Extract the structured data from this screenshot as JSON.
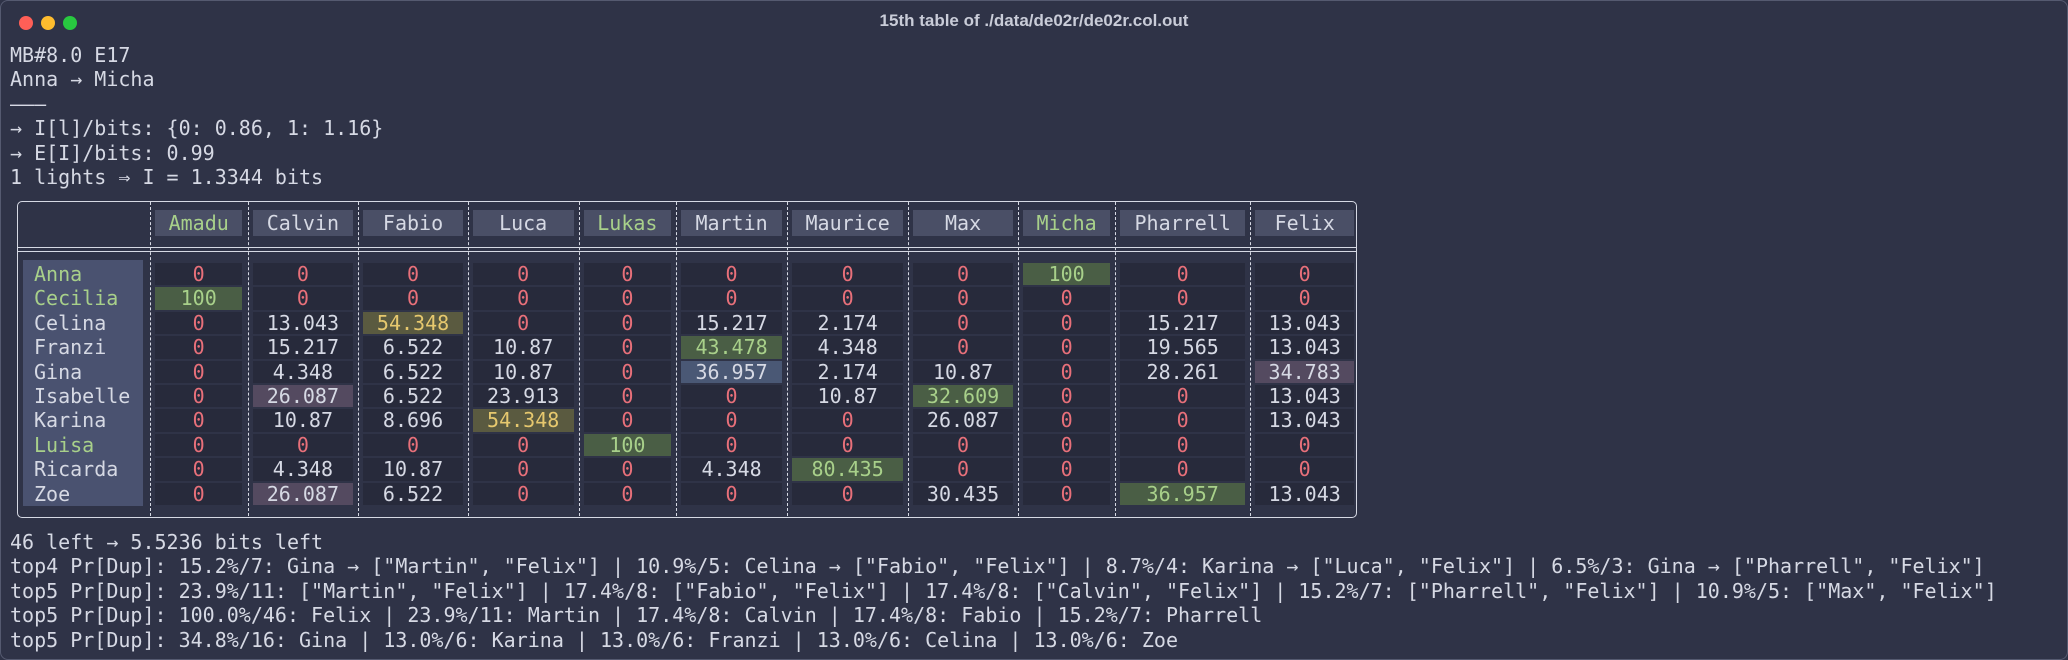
{
  "window": {
    "title": "15th table of ./data/de02r/de02r.col.out"
  },
  "header": {
    "lines": [
      "MB#8.0 E17",
      "Anna → Micha",
      "———",
      "→ I[l]/bits: {0: 0.86, 1: 1.16}",
      "→ E[I]/bits: 0.99",
      "1 lights ⇒ I = 1.3344 bits"
    ]
  },
  "table": {
    "columns": [
      "Amadu",
      "Calvin",
      "Fabio",
      "Luca",
      "Lukas",
      "Martin",
      "Maurice",
      "Max",
      "Micha",
      "Pharrell",
      "Felix"
    ],
    "row_labels": [
      "Anna",
      "Cecilia",
      "Celina",
      "Franzi",
      "Gina",
      "Isabelle",
      "Karina",
      "Luisa",
      "Ricarda",
      "Zoe"
    ],
    "rows": [
      [
        0,
        0,
        0,
        0,
        0,
        0,
        0,
        0,
        100,
        0,
        0
      ],
      [
        100,
        0,
        0,
        0,
        0,
        0,
        0,
        0,
        0,
        0,
        0
      ],
      [
        0,
        13.043,
        54.348,
        0,
        0,
        15.217,
        2.174,
        0,
        0,
        15.217,
        13.043
      ],
      [
        0,
        15.217,
        6.522,
        10.87,
        0,
        43.478,
        4.348,
        0,
        0,
        19.565,
        13.043
      ],
      [
        0,
        4.348,
        6.522,
        10.87,
        0,
        36.957,
        2.174,
        10.87,
        0,
        28.261,
        34.783
      ],
      [
        0,
        26.087,
        6.522,
        23.913,
        0,
        0,
        10.87,
        32.609,
        0,
        0,
        13.043
      ],
      [
        0,
        10.87,
        8.696,
        54.348,
        0,
        0,
        0,
        26.087,
        0,
        0,
        13.043
      ],
      [
        0,
        0,
        0,
        0,
        100,
        0,
        0,
        0,
        0,
        0,
        0
      ],
      [
        0,
        4.348,
        10.87,
        0,
        0,
        4.348,
        80.435,
        0,
        0,
        0,
        0
      ],
      [
        0,
        26.087,
        6.522,
        0,
        0,
        0,
        0,
        30.435,
        0,
        36.957,
        13.043
      ]
    ]
  },
  "footer": {
    "lines": [
      "46 left → 5.5236 bits left",
      "top4 Pr[Dup]: 15.2%/7: Gina → [\"Martin\", \"Felix\"] | 10.9%/5: Celina → [\"Fabio\", \"Felix\"] | 8.7%/4: Karina → [\"Luca\", \"Felix\"] | 6.5%/3: Gina → [\"Pharrell\", \"Felix\"]",
      "top5 Pr[Dup]: 23.9%/11: [\"Martin\", \"Felix\"] | 17.4%/8: [\"Fabio\", \"Felix\"] | 17.4%/8: [\"Calvin\", \"Felix\"] | 15.2%/7: [\"Pharrell\", \"Felix\"] | 10.9%/5: [\"Max\", \"Felix\"]",
      "top5 Pr[Dup]: 100.0%/46: Felix | 23.9%/11: Martin | 17.4%/8: Calvin | 17.4%/8: Fabio | 15.2%/7: Pharrell",
      "top5 Pr[Dup]: 34.8%/16: Gina | 13.0%/6: Karina | 13.0%/6: Franzi | 13.0%/6: Celina | 13.0%/6: Zoe"
    ]
  }
}
